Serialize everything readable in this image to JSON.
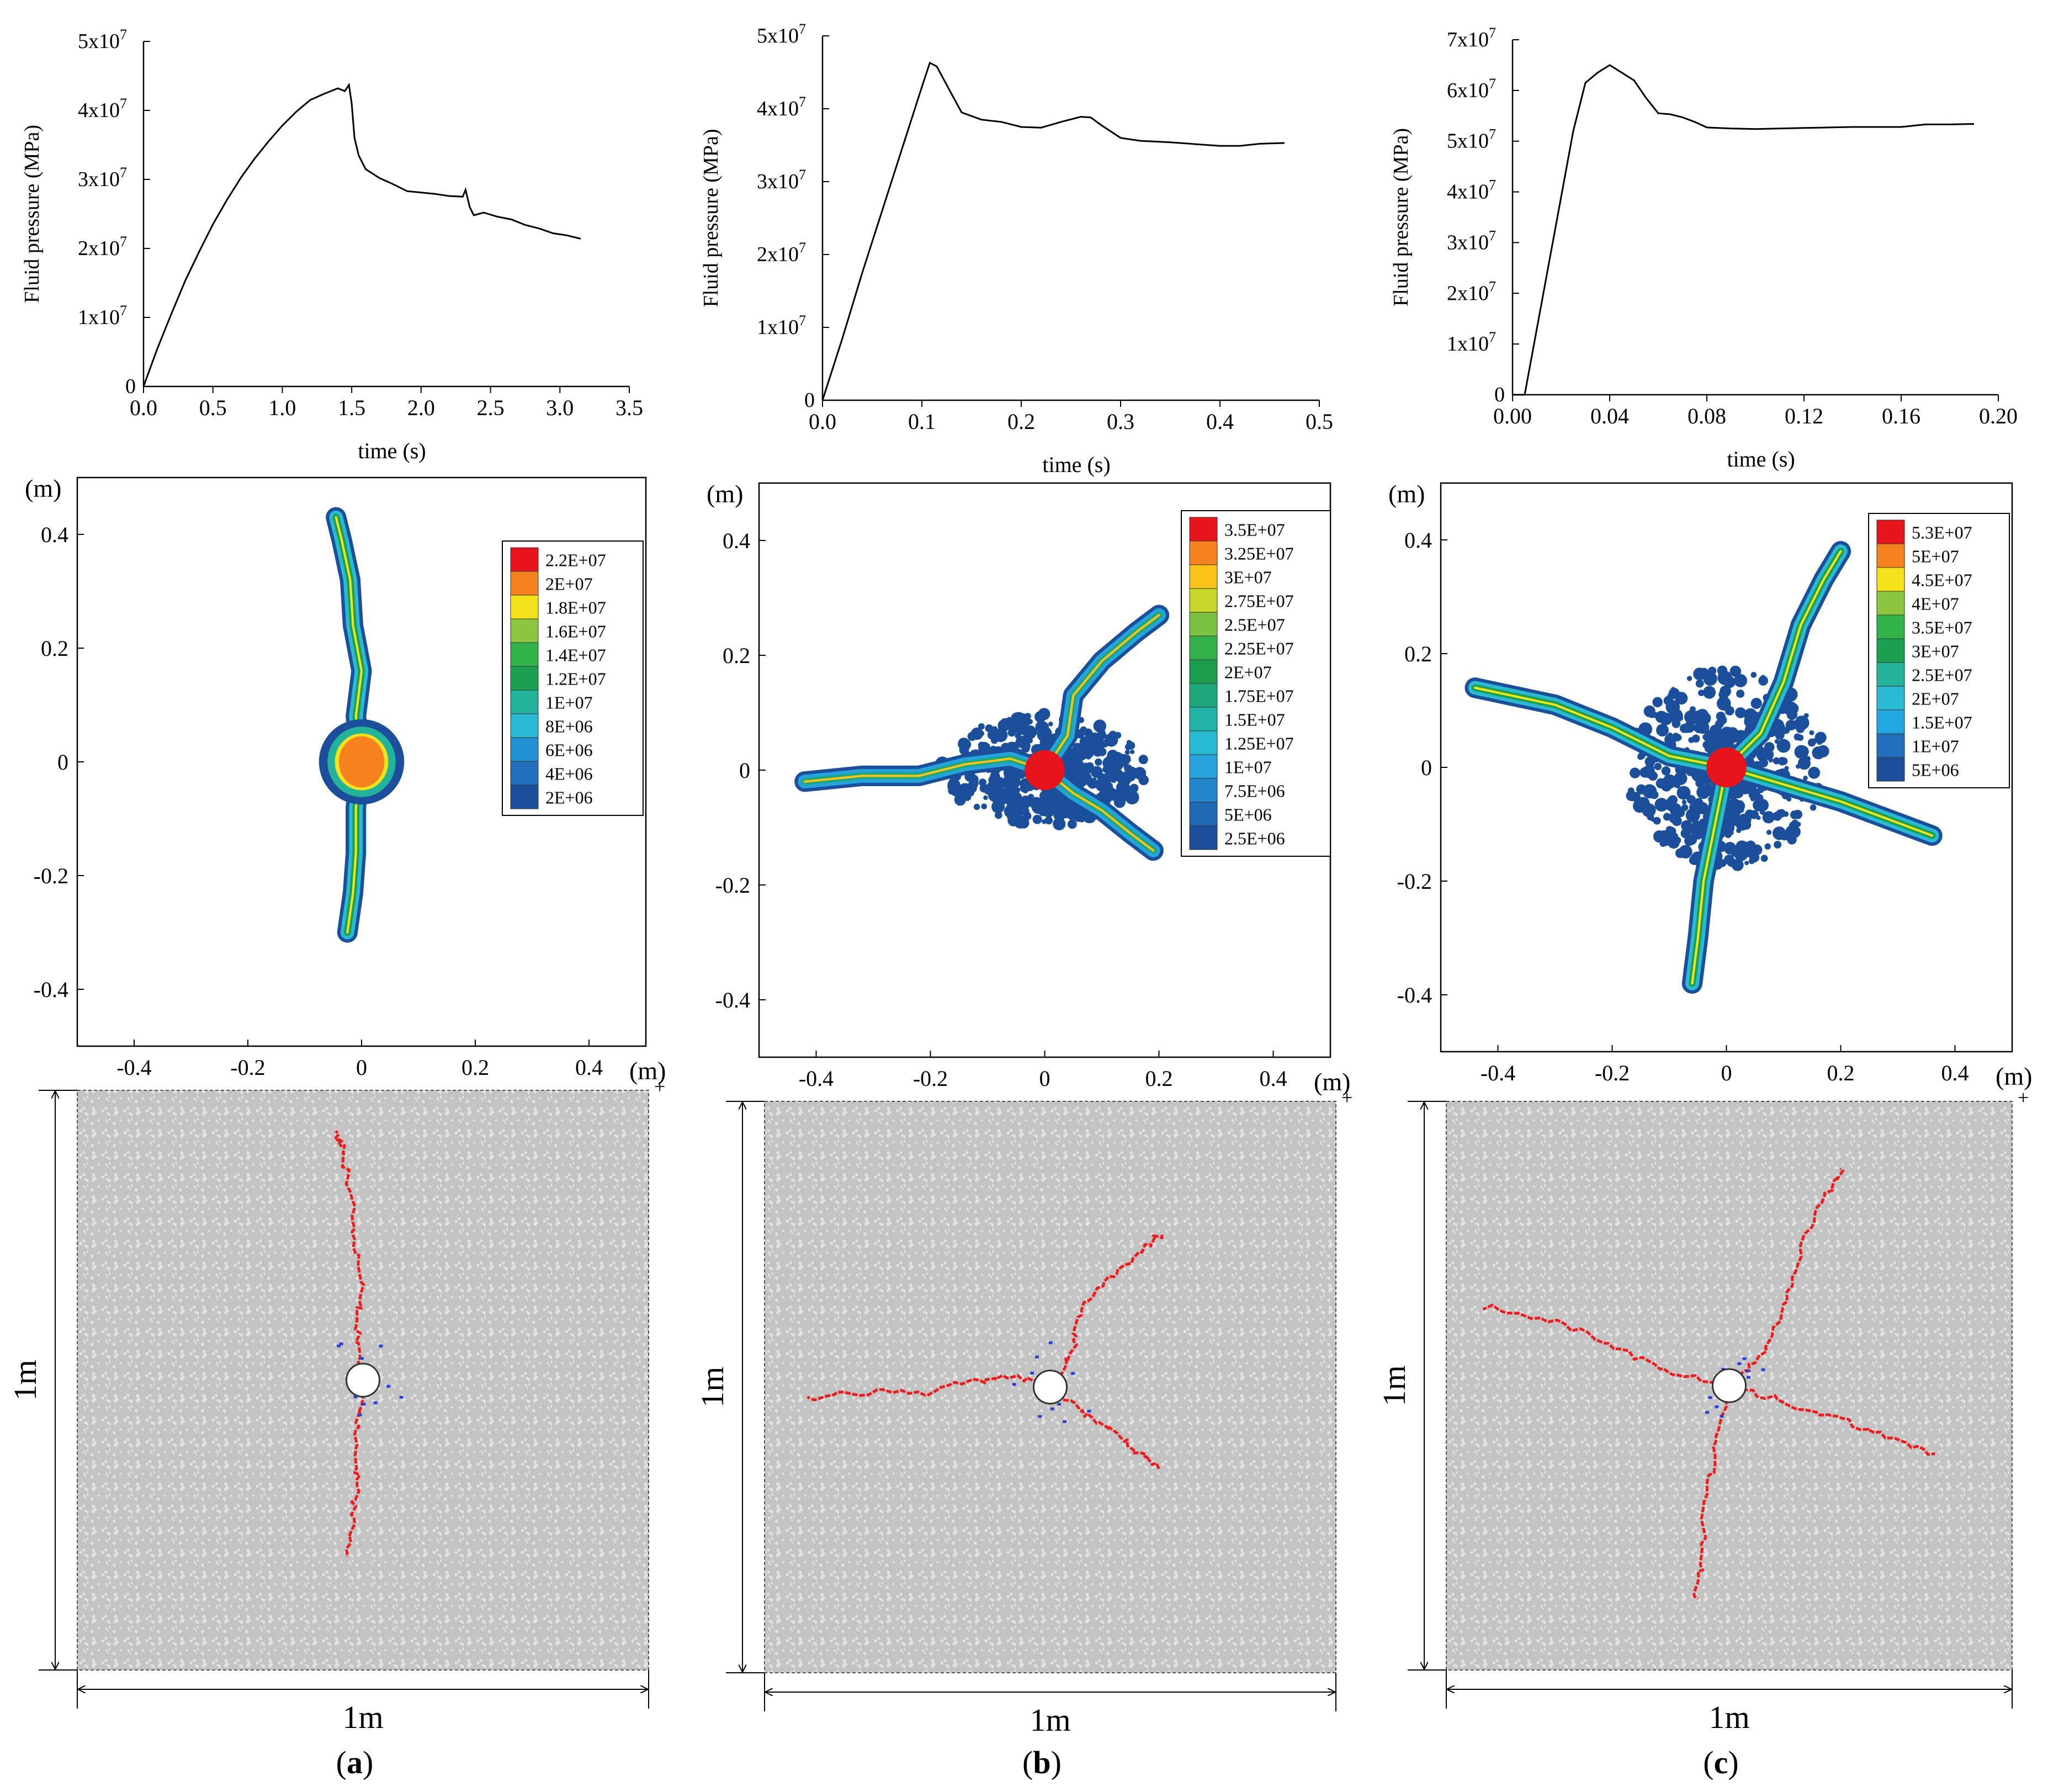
{
  "panel_labels": [
    "a",
    "b",
    "c"
  ],
  "sample_dimension_label": "1m",
  "chart_data": [
    {
      "type": "line",
      "panel": "a",
      "xlabel": "time (s)",
      "ylabel": "Fluid pressure (MPa)",
      "xlim": [
        0,
        3.5
      ],
      "ylim": [
        0,
        50000000
      ],
      "xticks": [
        "0.0",
        "0.5",
        "1.0",
        "1.5",
        "2.0",
        "2.5",
        "3.0",
        "3.5"
      ],
      "yticks": [
        {
          "base": "0",
          "exp": ""
        },
        {
          "base": "1x10",
          "exp": "7"
        },
        {
          "base": "2x10",
          "exp": "7"
        },
        {
          "base": "3x10",
          "exp": "7"
        },
        {
          "base": "4x10",
          "exp": "7"
        },
        {
          "base": "5x10",
          "exp": "7"
        }
      ],
      "x": [
        0,
        0.1,
        0.2,
        0.3,
        0.4,
        0.5,
        0.6,
        0.7,
        0.8,
        0.9,
        1.0,
        1.1,
        1.2,
        1.3,
        1.4,
        1.45,
        1.48,
        1.5,
        1.52,
        1.55,
        1.6,
        1.7,
        1.8,
        1.9,
        2.0,
        2.1,
        2.2,
        2.3,
        2.32,
        2.35,
        2.38,
        2.45,
        2.55,
        2.65,
        2.75,
        2.85,
        2.95,
        3.05,
        3.15
      ],
      "y": [
        0,
        5500000,
        10500000,
        15300000,
        19500000,
        23500000,
        27000000,
        30200000,
        33000000,
        35500000,
        37800000,
        39800000,
        41500000,
        42400000,
        43200000,
        42800000,
        43700000,
        41000000,
        36000000,
        33500000,
        31500000,
        30200000,
        29300000,
        28300000,
        28100000,
        27900000,
        27600000,
        27500000,
        28500000,
        26000000,
        24800000,
        25200000,
        24600000,
        24200000,
        23400000,
        22900000,
        22200000,
        21900000,
        21400000
      ]
    },
    {
      "type": "line",
      "panel": "b",
      "xlabel": "time (s)",
      "ylabel": "Fluid pressure (MPa)",
      "xlim": [
        0,
        0.5
      ],
      "ylim": [
        0,
        50000000
      ],
      "xticks": [
        "0.0",
        "0.1",
        "0.2",
        "0.3",
        "0.4",
        "0.5"
      ],
      "yticks": [
        {
          "base": "0",
          "exp": ""
        },
        {
          "base": "1x10",
          "exp": "7"
        },
        {
          "base": "2x10",
          "exp": "7"
        },
        {
          "base": "3x10",
          "exp": "7"
        },
        {
          "base": "4x10",
          "exp": "7"
        },
        {
          "base": "5x10",
          "exp": "7"
        }
      ],
      "x": [
        0,
        0.02,
        0.04,
        0.06,
        0.08,
        0.1,
        0.108,
        0.115,
        0.13,
        0.14,
        0.16,
        0.18,
        0.2,
        0.22,
        0.24,
        0.26,
        0.27,
        0.28,
        0.3,
        0.32,
        0.35,
        0.38,
        0.4,
        0.42,
        0.44,
        0.465
      ],
      "y": [
        0,
        8500000,
        17500000,
        26000000,
        34500000,
        43000000,
        46300000,
        45800000,
        42000000,
        39500000,
        38500000,
        38200000,
        37500000,
        37400000,
        38200000,
        38900000,
        38800000,
        37800000,
        36000000,
        35600000,
        35400000,
        35100000,
        34900000,
        34900000,
        35200000,
        35300000
      ]
    },
    {
      "type": "line",
      "panel": "c",
      "xlabel": "time (s)",
      "ylabel": "Fluid pressure (MPa)",
      "xlim": [
        0,
        0.2
      ],
      "ylim": [
        0,
        70000000
      ],
      "xticks": [
        "0.00",
        "0.04",
        "0.08",
        "0.12",
        "0.16",
        "0.20"
      ],
      "yticks": [
        {
          "base": "0",
          "exp": ""
        },
        {
          "base": "1x10",
          "exp": "7"
        },
        {
          "base": "2x10",
          "exp": "7"
        },
        {
          "base": "3x10",
          "exp": "7"
        },
        {
          "base": "4x10",
          "exp": "7"
        },
        {
          "base": "5x10",
          "exp": "7"
        },
        {
          "base": "6x10",
          "exp": "7"
        },
        {
          "base": "7x10",
          "exp": "7"
        }
      ],
      "x": [
        0,
        0.005,
        0.01,
        0.015,
        0.02,
        0.025,
        0.03,
        0.035,
        0.04,
        0.045,
        0.05,
        0.055,
        0.06,
        0.065,
        0.07,
        0.075,
        0.08,
        0.09,
        0.1,
        0.11,
        0.12,
        0.13,
        0.14,
        0.15,
        0.16,
        0.17,
        0.18,
        0.19
      ],
      "y": [
        0,
        0,
        13000000,
        26000000,
        39000000,
        52000000,
        61500000,
        63500000,
        65000000,
        63500000,
        62000000,
        58500000,
        55500000,
        55300000,
        54700000,
        53800000,
        52700000,
        52500000,
        52400000,
        52500000,
        52600000,
        52700000,
        52800000,
        52800000,
        52800000,
        53300000,
        53300000,
        53400000
      ]
    },
    {
      "type": "heatmap",
      "panel": "a",
      "unit_label": "(m)",
      "xlim": [
        -0.5,
        0.5
      ],
      "ylim": [
        -0.5,
        0.5
      ],
      "xticks": [
        "-0.4",
        "-0.2",
        "0",
        "0.2",
        "0.4"
      ],
      "yticks": [
        "-0.4",
        "-0.2",
        "0",
        "0.2",
        "0.4"
      ],
      "legend_placement": "top-right",
      "legend": [
        {
          "label": "2.2E+07",
          "color": "#e8141c"
        },
        {
          "label": "2E+07",
          "color": "#f6821f"
        },
        {
          "label": "1.8E+07",
          "color": "#f4e21a"
        },
        {
          "label": "1.6E+07",
          "color": "#8cc63f"
        },
        {
          "label": "1.4E+07",
          "color": "#32b34a"
        },
        {
          "label": "1.2E+07",
          "color": "#1aa050"
        },
        {
          "label": "1E+07",
          "color": "#23b39a"
        },
        {
          "label": "8E+06",
          "color": "#2bbad3"
        },
        {
          "label": "6E+06",
          "color": "#2291d3"
        },
        {
          "label": "4E+06",
          "color": "#1f6fbd"
        },
        {
          "label": "2E+06",
          "color": "#1b4f9c"
        }
      ],
      "center_color": "#f6821f",
      "fractures": [
        [
          [
            0,
            0
          ],
          [
            -0.01,
            0.08
          ],
          [
            0,
            0.16
          ],
          [
            -0.015,
            0.24
          ],
          [
            -0.02,
            0.32
          ],
          [
            -0.035,
            0.39
          ],
          [
            -0.045,
            0.43
          ]
        ],
        [
          [
            0,
            0
          ],
          [
            -0.01,
            -0.08
          ],
          [
            -0.01,
            -0.16
          ],
          [
            -0.015,
            -0.23
          ],
          [
            -0.025,
            -0.3
          ]
        ]
      ]
    },
    {
      "type": "heatmap",
      "panel": "b",
      "unit_label": "(m)",
      "xlim": [
        -0.5,
        0.5
      ],
      "ylim": [
        -0.5,
        0.5
      ],
      "xticks": [
        "-0.4",
        "-0.2",
        "0",
        "0.2",
        "0.4"
      ],
      "yticks": [
        "-0.4",
        "-0.2",
        "0",
        "0.2",
        "0.4"
      ],
      "legend_placement": "top-right",
      "legend": [
        {
          "label": "3.5E+07",
          "color": "#e8141c"
        },
        {
          "label": "3.25E+07",
          "color": "#f6821f"
        },
        {
          "label": "3E+07",
          "color": "#f9c31a"
        },
        {
          "label": "2.75E+07",
          "color": "#c8d72a"
        },
        {
          "label": "2.5E+07",
          "color": "#7cc242"
        },
        {
          "label": "2.25E+07",
          "color": "#34b04a"
        },
        {
          "label": "2E+07",
          "color": "#1a9e4e"
        },
        {
          "label": "1.75E+07",
          "color": "#1ea77c"
        },
        {
          "label": "1.5E+07",
          "color": "#22b4a6"
        },
        {
          "label": "1.25E+07",
          "color": "#26bbd2"
        },
        {
          "label": "1E+07",
          "color": "#25a3dc"
        },
        {
          "label": "7.5E+06",
          "color": "#2385cc"
        },
        {
          "label": "5E+06",
          "color": "#1f68b4"
        },
        {
          "label": "2.5E+06",
          "color": "#1b4f9c"
        }
      ],
      "center_color": "#e8141c",
      "fractures": [
        [
          [
            0,
            0
          ],
          [
            0.04,
            0.06
          ],
          [
            0.05,
            0.13
          ],
          [
            0.1,
            0.19
          ],
          [
            0.16,
            0.24
          ],
          [
            0.2,
            0.27
          ]
        ],
        [
          [
            0,
            0
          ],
          [
            -0.06,
            0.02
          ],
          [
            -0.14,
            0.01
          ],
          [
            -0.22,
            -0.01
          ],
          [
            -0.32,
            -0.01
          ],
          [
            -0.42,
            -0.02
          ]
        ],
        [
          [
            0,
            0
          ],
          [
            0.05,
            -0.04
          ],
          [
            0.1,
            -0.07
          ],
          [
            0.15,
            -0.11
          ],
          [
            0.19,
            -0.14
          ]
        ]
      ]
    },
    {
      "type": "heatmap",
      "panel": "c",
      "unit_label": "(m)",
      "xlim": [
        -0.5,
        0.5
      ],
      "ylim": [
        -0.5,
        0.5
      ],
      "xticks": [
        "-0.4",
        "-0.2",
        "0",
        "0.2",
        "0.4"
      ],
      "yticks": [
        "-0.4",
        "-0.2",
        "0",
        "0.2",
        "0.4"
      ],
      "legend_placement": "top-right",
      "legend": [
        {
          "label": "5.3E+07",
          "color": "#e8141c"
        },
        {
          "label": "5E+07",
          "color": "#f6821f"
        },
        {
          "label": "4.5E+07",
          "color": "#f4e21a"
        },
        {
          "label": "4E+07",
          "color": "#8cc63f"
        },
        {
          "label": "3.5E+07",
          "color": "#32b34a"
        },
        {
          "label": "3E+07",
          "color": "#1aa050"
        },
        {
          "label": "2.5E+07",
          "color": "#23b39a"
        },
        {
          "label": "2E+07",
          "color": "#2bbad3"
        },
        {
          "label": "1.5E+07",
          "color": "#23a7e0"
        },
        {
          "label": "1E+07",
          "color": "#1f6fbd"
        },
        {
          "label": "5E+06",
          "color": "#1b4f9c"
        }
      ],
      "center_color": "#e8141c",
      "fractures": [
        [
          [
            0,
            0
          ],
          [
            0.06,
            0.06
          ],
          [
            0.1,
            0.15
          ],
          [
            0.13,
            0.25
          ],
          [
            0.17,
            0.33
          ],
          [
            0.2,
            0.38
          ]
        ],
        [
          [
            0,
            0
          ],
          [
            -0.1,
            0.02
          ],
          [
            -0.2,
            0.07
          ],
          [
            -0.3,
            0.11
          ],
          [
            -0.44,
            0.14
          ]
        ],
        [
          [
            0,
            0
          ],
          [
            0.1,
            -0.03
          ],
          [
            0.2,
            -0.06
          ],
          [
            0.28,
            -0.09
          ],
          [
            0.36,
            -0.12
          ]
        ],
        [
          [
            0,
            0
          ],
          [
            -0.02,
            -0.1
          ],
          [
            -0.04,
            -0.2
          ],
          [
            -0.05,
            -0.3
          ],
          [
            -0.06,
            -0.38
          ]
        ]
      ]
    }
  ]
}
